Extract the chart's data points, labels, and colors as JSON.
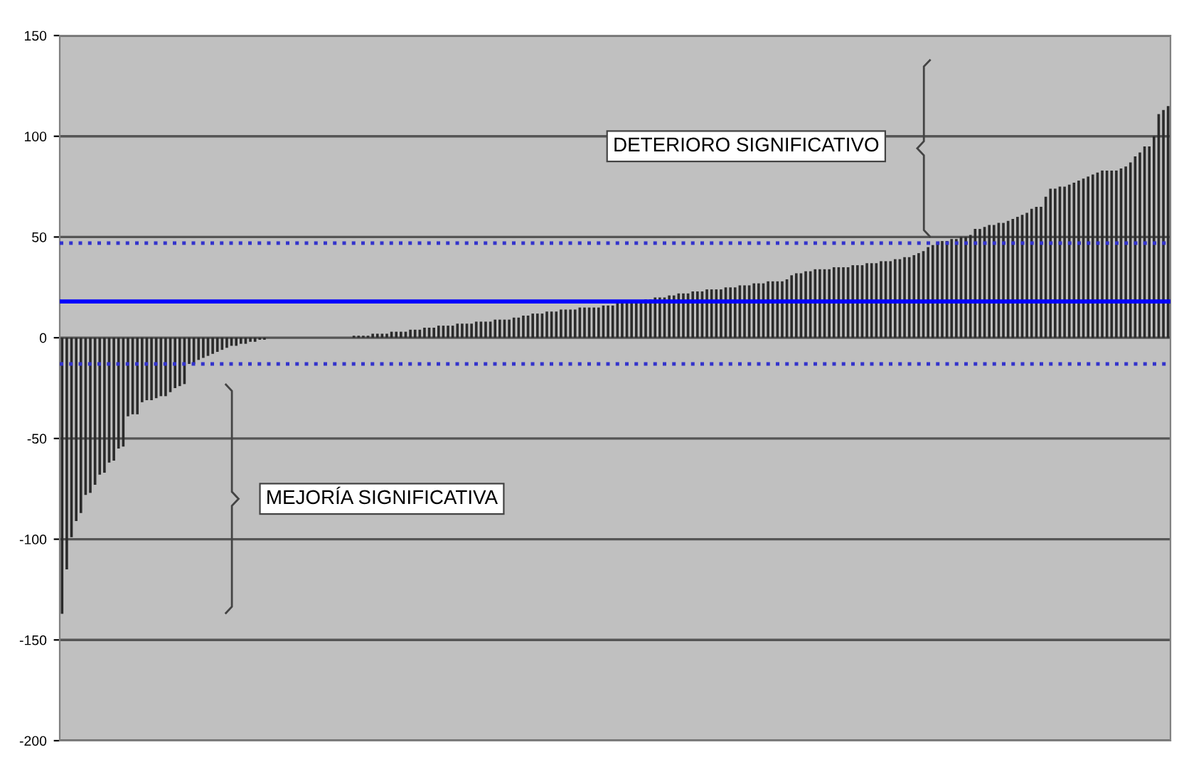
{
  "chart_data": {
    "type": "bar",
    "categories": [
      null,
      null,
      null,
      null,
      null,
      null,
      null,
      null,
      null,
      null,
      null,
      null,
      null,
      null,
      null,
      null,
      null,
      null,
      null,
      null,
      null,
      null,
      null,
      null,
      null,
      null,
      null,
      null,
      null,
      null,
      null,
      null,
      null,
      null,
      null,
      null,
      null,
      null,
      null,
      null,
      null,
      null,
      null,
      null,
      null,
      null,
      null,
      null,
      null,
      null,
      null,
      null,
      null,
      null,
      null,
      null,
      null,
      null,
      null,
      null,
      null,
      null,
      null,
      null,
      null,
      null,
      null,
      null,
      null,
      null,
      null,
      null,
      null,
      null,
      null,
      null,
      null,
      null,
      null,
      null,
      null,
      null,
      null,
      null,
      null,
      null,
      null,
      null,
      null,
      null,
      null,
      null,
      null,
      null,
      null,
      null,
      null,
      null,
      null,
      null,
      null,
      null,
      null,
      null,
      null,
      null,
      null,
      null,
      null,
      null,
      null,
      null,
      null,
      null,
      null,
      null,
      null,
      null,
      null,
      null,
      null,
      null,
      null,
      null,
      null,
      null,
      null,
      null,
      null,
      null,
      null,
      null,
      null,
      null,
      null,
      null,
      null,
      null,
      null,
      null,
      null,
      null,
      null,
      null,
      null,
      null,
      null,
      null,
      null,
      null,
      null,
      null,
      null,
      null,
      null,
      null,
      null,
      null,
      null,
      null,
      null,
      null,
      null,
      null,
      null,
      null,
      null,
      null,
      null,
      null,
      null,
      null,
      null,
      null,
      null,
      null,
      null,
      null,
      null,
      null,
      null,
      null,
      null,
      null,
      null,
      null,
      null,
      null,
      null,
      null,
      null,
      null,
      null,
      null,
      null,
      null,
      null,
      null,
      null,
      null,
      null,
      null,
      null,
      null,
      null,
      null,
      null,
      null,
      null,
      null,
      null,
      null,
      null,
      null,
      null,
      null,
      null,
      null,
      null,
      null,
      null,
      null,
      null,
      null,
      null,
      null,
      null,
      null,
      null,
      null,
      null,
      null,
      null,
      null,
      null,
      null
    ],
    "values": [
      -137,
      -115,
      -99,
      -91,
      -87,
      -78,
      -77,
      -73,
      -68,
      -67,
      -62,
      -61,
      -55,
      -54,
      -39,
      -38,
      -38,
      -32,
      -31,
      -31,
      -30,
      -29,
      -29,
      -27,
      -25,
      -24,
      -23,
      -13,
      -13,
      -11,
      -10,
      -9,
      -8,
      -7,
      -6,
      -5,
      -4,
      -4,
      -3,
      -3,
      -2,
      -2,
      -1,
      -1,
      0,
      0,
      0,
      0,
      0,
      0,
      0,
      0,
      0,
      0,
      0,
      0,
      0,
      0,
      0,
      0,
      0,
      0,
      1,
      1,
      1,
      1,
      2,
      2,
      2,
      2,
      3,
      3,
      3,
      3,
      4,
      4,
      4,
      5,
      5,
      5,
      6,
      6,
      6,
      6,
      7,
      7,
      7,
      7,
      8,
      8,
      8,
      8,
      9,
      9,
      9,
      9,
      10,
      10,
      11,
      11,
      12,
      12,
      12,
      13,
      13,
      13,
      14,
      14,
      14,
      14,
      15,
      15,
      15,
      15,
      15,
      16,
      16,
      16,
      17,
      17,
      17,
      18,
      18,
      18,
      19,
      19,
      20,
      20,
      20,
      21,
      21,
      22,
      22,
      22,
      23,
      23,
      23,
      24,
      24,
      24,
      24,
      25,
      25,
      25,
      26,
      26,
      26,
      27,
      27,
      27,
      28,
      28,
      28,
      28,
      29,
      31,
      32,
      32,
      33,
      33,
      34,
      34,
      34,
      34,
      35,
      35,
      35,
      35,
      36,
      36,
      36,
      37,
      37,
      37,
      38,
      38,
      38,
      39,
      39,
      40,
      40,
      41,
      42,
      43,
      45,
      46,
      47,
      48,
      48,
      49,
      49,
      50,
      50,
      51,
      54,
      54,
      55,
      56,
      56,
      57,
      57,
      58,
      59,
      60,
      61,
      62,
      64,
      65,
      65,
      70,
      74,
      74,
      75,
      75,
      76,
      77,
      78,
      79,
      80,
      81,
      82,
      83,
      83,
      83,
      83,
      84,
      85,
      87,
      90,
      92,
      95,
      95,
      100,
      111,
      113,
      115
    ],
    "color": "#2b2b2b",
    "ylim": [
      -200,
      150
    ],
    "yticks": [
      -200,
      -150,
      -100,
      -50,
      0,
      50,
      100,
      150
    ],
    "grid": "y",
    "tick_labels": "y",
    "ref_lines": [
      {
        "axis": "y",
        "value": 18,
        "color": "#0000ff",
        "line_style": "solid"
      },
      {
        "axis": "y",
        "value": 47,
        "color": "#3333cc",
        "line_style": "dotted"
      },
      {
        "axis": "y",
        "value": -13,
        "color": "#3333cc",
        "line_style": "dotted"
      }
    ],
    "annotations": [
      "DETERIORO SIGNIFICATIVO",
      "MEJORÍA SIGNIFICATIVA"
    ]
  }
}
